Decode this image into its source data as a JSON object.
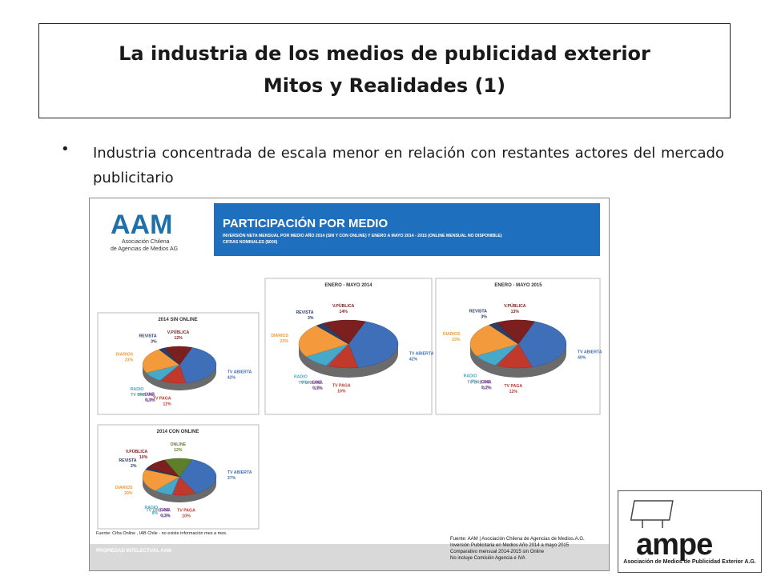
{
  "title": {
    "line1": "La industria de los medios de publicidad exterior",
    "line2": "Mitos y Realidades (1)"
  },
  "bullet": {
    "dot": "•",
    "text": "Industria concentrada de escala menor en relación con restantes actores del mercado publicitario"
  },
  "aam_logo": {
    "letters": "AAM",
    "line1": "Asociación Chilena",
    "line2": "de Agencias de Medios AG"
  },
  "banner": {
    "title": "PARTICIPACIÓN POR MEDIO",
    "sub1": "INVERSIÓN NETA MENSUAL POR MEDIO AÑO 2014 (SIN Y CON ONLINE) Y ENERO A MAYO 2014 - 2015 (ONLINE MENSUAL NO DISPONIBLE)",
    "sub2": "CIFRAS NOMINALES ($000)",
    "color": "#1f6fbf"
  },
  "footnote_left": "Fuente: Cifra Online , IAB Chile - no existe información mes a mes.",
  "footer_band": "PROPIEDAD INTELECTUAL AAM",
  "source_right": [
    "Fuente: AAM | Asociación Chilena de Agencias de Medios.A.G.",
    "Inversión Publicitaria en Medios Año 2014 a mayo 2015",
    "Comparativo mensual 2014-2015 sin Online",
    "No incluye Comisión Agencia e IVA"
  ],
  "ampe_logo": {
    "word": "ampe",
    "caption": "Asociación de Medios de Publicidad Exterior A.G."
  },
  "chart_data": [
    {
      "type": "pie",
      "title": "2014 SIN ONLINE",
      "slices": [
        {
          "name": "TV ABIERTA",
          "value": 42,
          "label": "42%",
          "color": "#3f6fb8"
        },
        {
          "name": "TV PAGA",
          "value": 11,
          "label": "11%",
          "color": "#c0392b"
        },
        {
          "name": "TV URBANA",
          "value": 0.3,
          "label": "0,3%",
          "color": "#7f8c8d"
        },
        {
          "name": "CINE",
          "value": 0.3,
          "label": "0,3%",
          "color": "#8e44ad"
        },
        {
          "name": "RADIO",
          "value": 9,
          "label": "9%",
          "color": "#46a9c9"
        },
        {
          "name": "DIARIOS",
          "value": 23,
          "label": "23%",
          "color": "#f39a3c"
        },
        {
          "name": "REVISTA",
          "value": 3,
          "label": "3%",
          "color": "#2c3e66"
        },
        {
          "name": "V.PÚBLICA",
          "value": 12,
          "label": "12%",
          "color": "#7b1f1f"
        }
      ]
    },
    {
      "type": "pie",
      "title": "ENERO - MAYO 2014",
      "slices": [
        {
          "name": "TV ABIERTA",
          "value": 42,
          "label": "42%",
          "color": "#3f6fb8"
        },
        {
          "name": "TV PAGA",
          "value": 10,
          "label": "10%",
          "color": "#c0392b"
        },
        {
          "name": "TV URBANA",
          "value": 0.3,
          "label": "0,3%",
          "color": "#7f8c8d"
        },
        {
          "name": "CINE",
          "value": 0.3,
          "label": "0,3%",
          "color": "#8e44ad"
        },
        {
          "name": "RADIO",
          "value": 9,
          "label": "9%",
          "color": "#46a9c9"
        },
        {
          "name": "DIARIOS",
          "value": 23,
          "label": "23%",
          "color": "#f39a3c"
        },
        {
          "name": "REVISTA",
          "value": 3,
          "label": "3%",
          "color": "#2c3e66"
        },
        {
          "name": "V.PÚBLICA",
          "value": 14,
          "label": "14%",
          "color": "#7b1f1f"
        }
      ]
    },
    {
      "type": "pie",
      "title": "ENERO - MAYO 2015",
      "slices": [
        {
          "name": "TV ABIERTA",
          "value": 40,
          "label": "40%",
          "color": "#3f6fb8"
        },
        {
          "name": "TV PAGA",
          "value": 12,
          "label": "12%",
          "color": "#c0392b"
        },
        {
          "name": "TV URBANA",
          "value": 0.2,
          "label": "0,2%",
          "color": "#7f8c8d"
        },
        {
          "name": "CINE",
          "value": 0.3,
          "label": "0,3%",
          "color": "#8e44ad"
        },
        {
          "name": "RADIO",
          "value": 9,
          "label": "9%",
          "color": "#46a9c9"
        },
        {
          "name": "DIARIOS",
          "value": 23,
          "label": "23%",
          "color": "#f39a3c"
        },
        {
          "name": "REVISTA",
          "value": 3,
          "label": "3%",
          "color": "#2c3e66"
        },
        {
          "name": "V.PÚBLICA",
          "value": 13,
          "label": "13%",
          "color": "#7b1f1f"
        }
      ]
    },
    {
      "type": "pie",
      "title": "2014 CON ONLINE",
      "slices": [
        {
          "name": "TV ABIERTA",
          "value": 37,
          "label": "37%",
          "color": "#3f6fb8"
        },
        {
          "name": "TV PAGA",
          "value": 10,
          "label": "10%",
          "color": "#c0392b"
        },
        {
          "name": "TV URBANA",
          "value": 0.3,
          "label": "0,3%",
          "color": "#7f8c8d"
        },
        {
          "name": "CINE",
          "value": 0.3,
          "label": "0,3%",
          "color": "#8e44ad"
        },
        {
          "name": "RADIO",
          "value": 8,
          "label": "8%",
          "color": "#46a9c9"
        },
        {
          "name": "DIARIOS",
          "value": 20,
          "label": "20%",
          "color": "#f39a3c"
        },
        {
          "name": "REVISTA",
          "value": 2,
          "label": "2%",
          "color": "#2c3e66"
        },
        {
          "name": "V.PÚBLICA",
          "value": 10,
          "label": "10%",
          "color": "#7b1f1f"
        },
        {
          "name": "ONLINE",
          "value": 12,
          "label": "12%",
          "color": "#5e7f2a"
        }
      ]
    }
  ]
}
